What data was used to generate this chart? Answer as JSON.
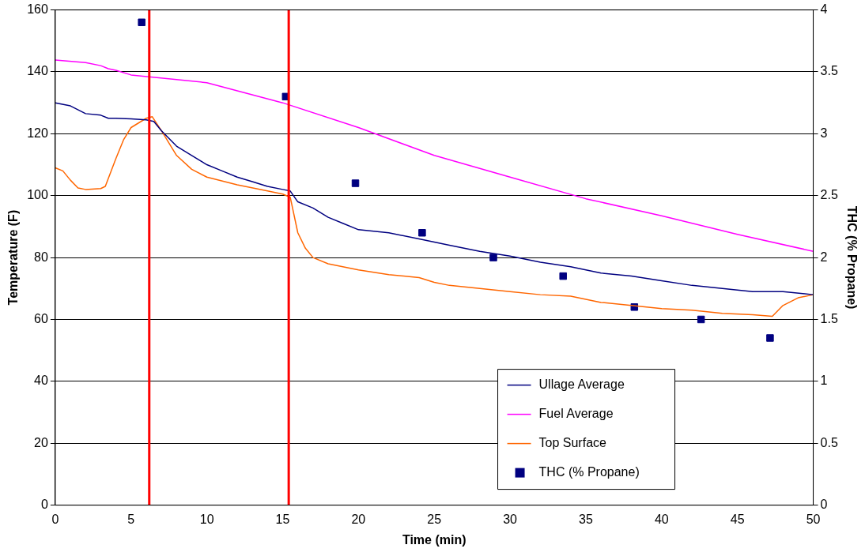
{
  "chart_data": {
    "type": "line",
    "xlabel": "Time (min)",
    "ylabel": "Temperature (F)",
    "y2label": "THC (% Propane)",
    "xlim": [
      0,
      50
    ],
    "xticks": [
      0,
      5,
      10,
      15,
      20,
      25,
      30,
      35,
      40,
      45,
      50
    ],
    "ylim": [
      0,
      160
    ],
    "yticks": [
      0,
      20,
      40,
      60,
      80,
      100,
      120,
      140,
      160
    ],
    "y2lim": [
      0,
      4
    ],
    "y2ticks": [
      0,
      0.5,
      1,
      1.5,
      2,
      2.5,
      3,
      3.5,
      4
    ],
    "grid": "y",
    "legend": "bottom right",
    "ref_lines": [
      {
        "axis": "x",
        "value": 6.2,
        "color": "#ff0000"
      },
      {
        "axis": "x",
        "value": 15.4,
        "color": "#ff0000"
      }
    ],
    "series": [
      {
        "name": "Ullage Average",
        "type": "line",
        "color": "#000080",
        "marker": "none",
        "x": [
          0,
          1,
          2,
          3,
          3.5,
          4,
          5,
          6,
          6.5,
          7,
          8,
          9,
          10,
          11,
          12,
          13,
          14,
          15,
          15.5,
          16,
          17,
          18,
          19,
          20,
          22,
          24,
          26,
          28,
          30,
          32,
          34,
          36,
          38,
          40,
          42,
          44,
          46,
          48,
          50
        ],
        "values": [
          130,
          129,
          126.5,
          126,
          125,
          125,
          124.8,
          124.5,
          124,
          121,
          116,
          113,
          110,
          108,
          106,
          104.5,
          103,
          102,
          101.5,
          98,
          96,
          93,
          91,
          89,
          88,
          86,
          84,
          82,
          80.5,
          78.5,
          77,
          75,
          74,
          72.5,
          71,
          70,
          69,
          69,
          68
        ]
      },
      {
        "name": "Fuel Average",
        "type": "line",
        "color": "#ff00ff",
        "marker": "none",
        "x": [
          0,
          2,
          3,
          3.5,
          4,
          5,
          10,
          15,
          20,
          25,
          30,
          35,
          40,
          45,
          50
        ],
        "values": [
          143.8,
          143,
          142,
          141,
          140.5,
          139,
          136.5,
          130,
          122,
          113,
          106,
          99,
          93.5,
          87.5,
          82
        ]
      },
      {
        "name": "Top Surface",
        "type": "line",
        "color": "#ff6600",
        "marker": "none",
        "x": [
          0,
          0.5,
          1,
          1.5,
          2,
          3,
          3.3,
          4,
          4.5,
          5,
          6,
          6.4,
          7,
          8,
          9,
          10,
          12,
          14,
          15,
          15.5,
          16,
          16.5,
          17,
          18,
          20,
          22,
          24,
          25,
          26,
          28,
          30,
          32,
          34,
          36,
          38,
          40,
          42,
          44,
          46,
          47.3,
          48,
          49,
          50
        ],
        "values": [
          109,
          108,
          105,
          102.5,
          102,
          102.3,
          103,
          112,
          118,
          122,
          125,
          125.5,
          121,
          113,
          108.5,
          106,
          103.5,
          101.5,
          100.5,
          99.5,
          88,
          83,
          80,
          78,
          76,
          74.5,
          73.5,
          72,
          71,
          70,
          69,
          68,
          67.5,
          65.5,
          64.5,
          63.5,
          63,
          62,
          61.5,
          61,
          64.5,
          67,
          68
        ]
      },
      {
        "name": "THC (% Propane)",
        "type": "scatter",
        "axis": "y2",
        "color": "#000080",
        "marker": "square",
        "x": [
          5.7,
          15.2,
          19.8,
          24.2,
          28.9,
          33.5,
          38.2,
          42.6,
          47.15
        ],
        "values": [
          3.9,
          3.3,
          2.6,
          2.2,
          2.0,
          1.85,
          1.6,
          1.5,
          1.35
        ]
      }
    ]
  }
}
